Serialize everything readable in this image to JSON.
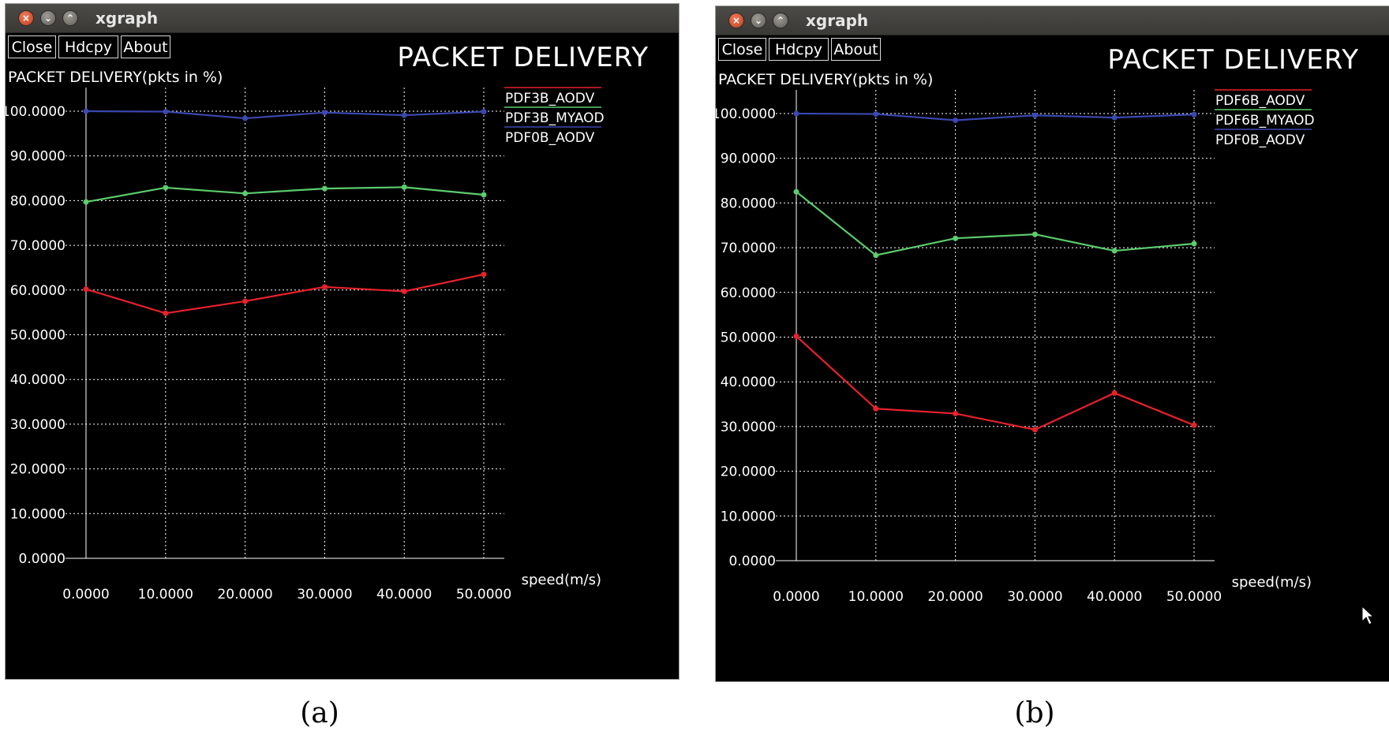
{
  "windows": [
    {
      "app_title": "xgraph",
      "buttons": {
        "close": "Close",
        "hdcpy": "Hdcpy",
        "about": "About"
      },
      "caption": "(a)"
    },
    {
      "app_title": "xgraph",
      "buttons": {
        "close": "Close",
        "hdcpy": "Hdcpy",
        "about": "About"
      },
      "caption": "(b)"
    }
  ],
  "colors": {
    "background": "#000000",
    "red": "#e8212b",
    "green": "#5ccc6c",
    "blue": "#3a48b0",
    "grid": "#ffffff"
  },
  "chart_data": [
    {
      "type": "line",
      "title": "PACKET DELIVERY",
      "ylabel": "PACKET DELIVERY(pkts in %)",
      "xlabel": "speed(m/s)",
      "x": [
        0,
        10,
        20,
        30,
        40,
        50
      ],
      "xticklabels": [
        "0.0000",
        "10.0000",
        "20.0000",
        "30.0000",
        "40.0000",
        "50.0000"
      ],
      "yticklabels": [
        "0.0000",
        "10.0000",
        "20.0000",
        "30.0000",
        "40.0000",
        "50.0000",
        "60.0000",
        "70.0000",
        "80.0000",
        "90.0000",
        "100.0000"
      ],
      "xlim": [
        0,
        50
      ],
      "ylim": [
        0,
        100
      ],
      "grid": true,
      "legend": "top-right",
      "series": [
        {
          "name": "PDF3B_AODV",
          "color": "#e8212b",
          "values": [
            60.2,
            54.8,
            57.5,
            60.7,
            59.7,
            63.5
          ]
        },
        {
          "name": "PDF3B_MYAOD",
          "color": "#5ccc6c",
          "values": [
            79.7,
            82.9,
            81.6,
            82.7,
            83.0,
            81.3
          ]
        },
        {
          "name": "PDF0B_AODV",
          "color": "#3a48b0",
          "values": [
            100.0,
            99.9,
            98.4,
            99.7,
            99.1,
            99.9
          ]
        }
      ]
    },
    {
      "type": "line",
      "title": "PACKET DELIVERY",
      "ylabel": "PACKET DELIVERY(pkts in %)",
      "xlabel": "speed(m/s)",
      "x": [
        0,
        10,
        20,
        30,
        40,
        50
      ],
      "xticklabels": [
        "0.0000",
        "10.0000",
        "20.0000",
        "30.0000",
        "40.0000",
        "50.0000"
      ],
      "yticklabels": [
        "0.0000",
        "10.0000",
        "20.0000",
        "30.0000",
        "40.0000",
        "50.0000",
        "60.0000",
        "70.0000",
        "80.0000",
        "90.0000",
        "100.0000"
      ],
      "xlim": [
        0,
        50
      ],
      "ylim": [
        0,
        100
      ],
      "grid": true,
      "legend": "top-right",
      "series": [
        {
          "name": "PDF6B_AODV",
          "color": "#e8212b",
          "values": [
            50.2,
            34.0,
            32.9,
            29.3,
            37.5,
            30.3
          ]
        },
        {
          "name": "PDF6B_MYAOD",
          "color": "#5ccc6c",
          "values": [
            82.5,
            68.3,
            72.1,
            73.0,
            69.3,
            70.9
          ]
        },
        {
          "name": "PDF0B_AODV",
          "color": "#3a48b0",
          "values": [
            100.0,
            99.9,
            98.5,
            99.6,
            99.1,
            99.8
          ]
        }
      ]
    }
  ]
}
